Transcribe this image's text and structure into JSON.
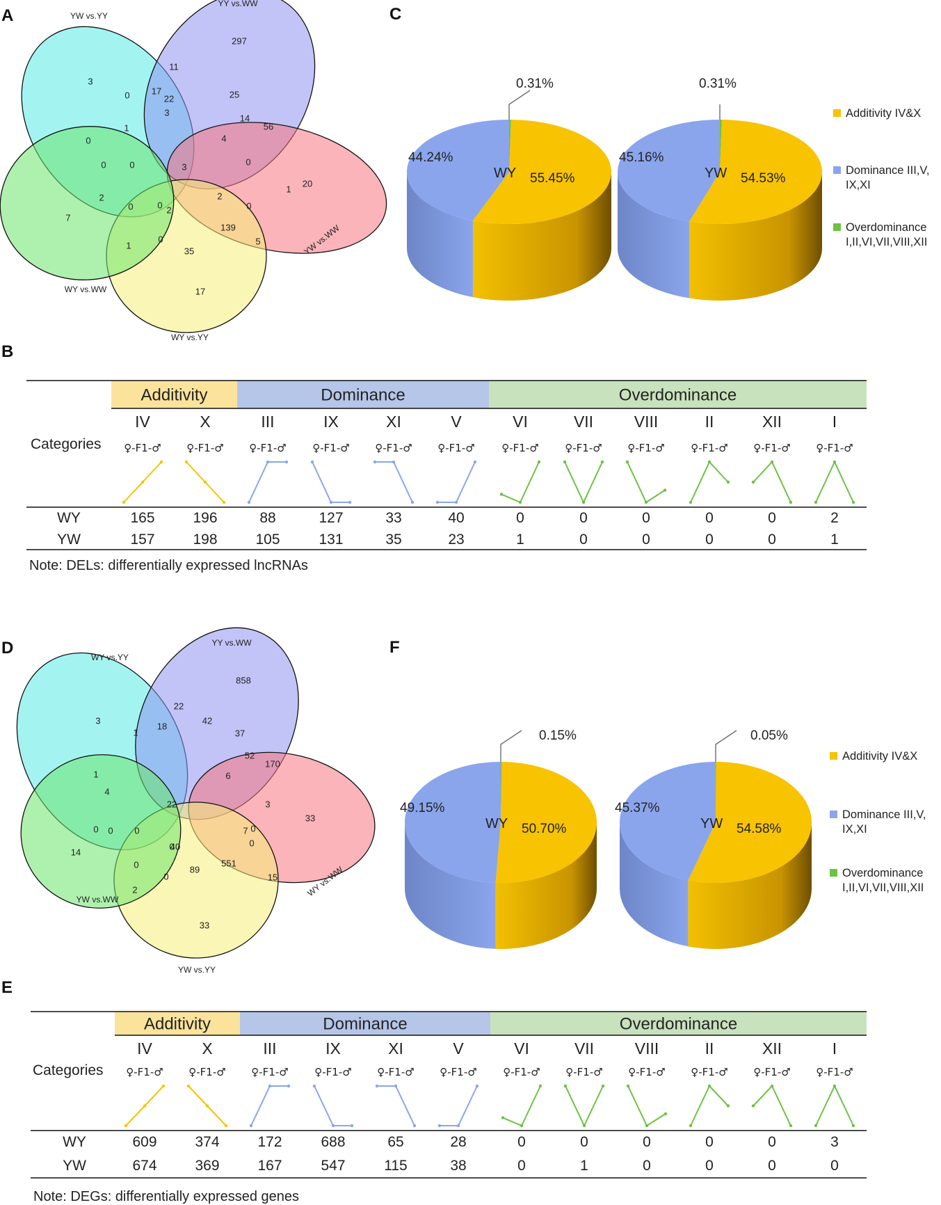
{
  "colors": {
    "additivity": "#f8c300",
    "dominance": "#8aa5ec",
    "overdominance": "#6cc244",
    "band_additivity": "#fbe39c",
    "band_dominance": "#b5c6e8",
    "band_overdominance": "#c8e2bd",
    "venn_sets": [
      "#57ebe5",
      "#8f93f0",
      "#f7777f",
      "#f5ef7a",
      "#6ce56c"
    ]
  },
  "panels": {
    "A": "A",
    "B": "B",
    "C": "C",
    "D": "D",
    "E": "E",
    "F": "F"
  },
  "chart_data": [
    {
      "panel": "A",
      "type": "venn",
      "sets": [
        "YW vs.YY",
        "YY vs.WW",
        "YW vs.WW",
        "WY vs.WW",
        "WY vs.YY"
      ],
      "values": [
        3,
        297,
        20,
        17,
        7,
        11,
        56,
        5,
        35,
        1,
        0,
        14,
        0,
        0,
        0,
        22,
        25,
        1,
        139,
        0,
        0,
        0,
        2,
        0,
        0,
        17,
        4,
        2,
        2,
        1,
        3,
        3
      ]
    },
    {
      "panel": "D",
      "type": "venn",
      "sets": [
        "WY vs.YY",
        "YY vs.WW",
        "WY vs.WW",
        "YW vs.WW",
        "YW vs.YY"
      ],
      "values": [
        3,
        858,
        33,
        33,
        14,
        22,
        170,
        15,
        89,
        2,
        1,
        52,
        3,
        0,
        0,
        42,
        37,
        0,
        551,
        0,
        0,
        0,
        40,
        0,
        0,
        18,
        6,
        7,
        4,
        1,
        22
      ]
    },
    {
      "panel": "C",
      "type": "pie",
      "categories": [
        "Additivity IV&X",
        "Dominance III,V,IX,XI",
        "Overdominance I,II,VI,VII,VIII,XII"
      ],
      "series": [
        {
          "name": "WY",
          "values": [
            55.45,
            44.24,
            0.31
          ],
          "labels": [
            "55.45%",
            "44.24%",
            "0.31%"
          ]
        },
        {
          "name": "YW",
          "values": [
            54.53,
            45.16,
            0.31
          ],
          "labels": [
            "54.53%",
            "45.16%",
            "0.31%"
          ]
        }
      ],
      "legend": [
        "Additivity IV&X",
        "Dominance III,V,",
        "IX,XI",
        "Overdominance",
        "I,II,VI,VII,VIII,XII"
      ]
    },
    {
      "panel": "F",
      "type": "pie",
      "categories": [
        "Additivity IV&X",
        "Dominance III,V,IX,XI",
        "Overdominance I,II,VI,VII,VIII,XII"
      ],
      "series": [
        {
          "name": "WY",
          "values": [
            50.7,
            49.15,
            0.15
          ],
          "labels": [
            "50.70%",
            "49.15%",
            "0.15%"
          ]
        },
        {
          "name": "YW",
          "values": [
            54.58,
            45.37,
            0.05
          ],
          "labels": [
            "54.58%",
            "45.37%",
            "0.05%"
          ]
        }
      ],
      "legend": [
        "Additivity IV&X",
        "Dominance III,V,",
        "IX,XI",
        "Overdominance",
        "I,II,VI,VII,VIII,XII"
      ]
    },
    {
      "panel": "B",
      "type": "table",
      "groups": [
        "Additivity",
        "Dominance",
        "Overdominance"
      ],
      "categories_label": "Categories",
      "columns": [
        "IV",
        "X",
        "III",
        "IX",
        "XI",
        "V",
        "VI",
        "VII",
        "VIII",
        "II",
        "XII",
        "I"
      ],
      "column_groups": [
        "additivity",
        "additivity",
        "dominance",
        "dominance",
        "dominance",
        "dominance",
        "overdominance",
        "overdominance",
        "overdominance",
        "overdominance",
        "overdominance",
        "overdominance"
      ],
      "symbol": "♀-F1-♂",
      "patterns": [
        [
          0,
          0.5,
          1
        ],
        [
          1,
          0.5,
          0
        ],
        [
          0,
          1,
          1
        ],
        [
          1,
          0,
          0
        ],
        [
          1,
          1,
          0
        ],
        [
          0,
          0,
          1
        ],
        [
          0.2,
          0,
          1
        ],
        [
          1,
          0,
          1
        ],
        [
          1,
          0,
          0.3
        ],
        [
          0,
          1,
          0.5
        ],
        [
          0.5,
          1,
          0
        ],
        [
          0,
          1,
          0
        ]
      ],
      "rows": [
        {
          "name": "WY",
          "values": [
            165,
            196,
            88,
            127,
            33,
            40,
            0,
            0,
            0,
            0,
            0,
            2
          ]
        },
        {
          "name": "YW",
          "values": [
            157,
            198,
            105,
            131,
            35,
            23,
            1,
            0,
            0,
            0,
            0,
            1
          ]
        }
      ],
      "note": "Note: DELs: differentially expressed lncRNAs"
    },
    {
      "panel": "E",
      "type": "table",
      "groups": [
        "Additivity",
        "Dominance",
        "Overdominance"
      ],
      "categories_label": "Categories",
      "columns": [
        "IV",
        "X",
        "III",
        "IX",
        "XI",
        "V",
        "VI",
        "VII",
        "VIII",
        "II",
        "XII",
        "I"
      ],
      "column_groups": [
        "additivity",
        "additivity",
        "dominance",
        "dominance",
        "dominance",
        "dominance",
        "overdominance",
        "overdominance",
        "overdominance",
        "overdominance",
        "overdominance",
        "overdominance"
      ],
      "symbol": "♀-F1-♂",
      "patterns": [
        [
          0,
          0.5,
          1
        ],
        [
          1,
          0.5,
          0
        ],
        [
          0,
          1,
          1
        ],
        [
          1,
          0,
          0
        ],
        [
          1,
          1,
          0
        ],
        [
          0,
          0,
          1
        ],
        [
          0.2,
          0,
          1
        ],
        [
          1,
          0,
          1
        ],
        [
          1,
          0,
          0.3
        ],
        [
          0,
          1,
          0.5
        ],
        [
          0.5,
          1,
          0
        ],
        [
          0,
          1,
          0
        ]
      ],
      "rows": [
        {
          "name": "WY",
          "values": [
            609,
            374,
            172,
            688,
            65,
            28,
            0,
            0,
            0,
            0,
            0,
            3
          ]
        },
        {
          "name": "YW",
          "values": [
            674,
            369,
            167,
            547,
            115,
            38,
            0,
            1,
            0,
            0,
            0,
            0
          ]
        }
      ],
      "note": "Note: DEGs: differentially expressed genes"
    }
  ]
}
